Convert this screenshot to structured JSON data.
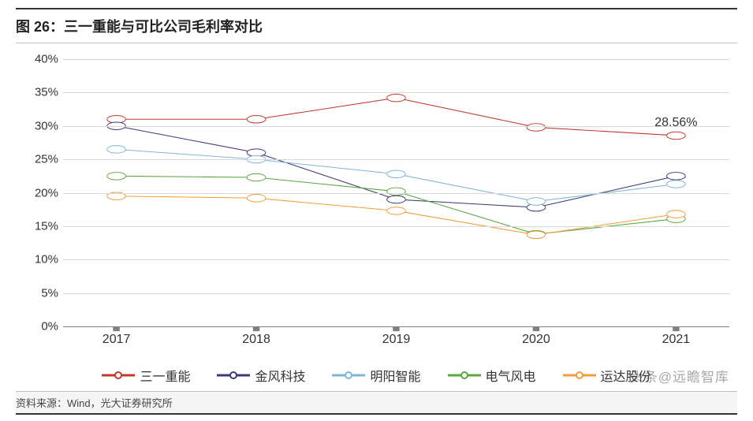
{
  "title": "图 26：三一重能与可比公司毛利率对比",
  "source": "资料来源：Wind，光大证券研究所",
  "watermark": "头条@远瞻智库",
  "annotation_label": "28.56%",
  "chart": {
    "type": "line",
    "ylabel_suffix": "%",
    "ylim": [
      0,
      40
    ],
    "ytick_step": 5,
    "categories": [
      "2017",
      "2018",
      "2019",
      "2020",
      "2021"
    ],
    "background_color": "#ffffff",
    "grid_color": "#d9d9d9",
    "axis_color": "#808080",
    "tick_fontsize": 15,
    "legend_fontsize": 16,
    "title_fontsize": 18,
    "line_width": 3,
    "marker_size": 11,
    "marker_fill": "#ffffff",
    "series": [
      {
        "name": "三一重能",
        "color": "#c0392b",
        "values": [
          31.0,
          31.0,
          34.2,
          29.8,
          28.56
        ]
      },
      {
        "name": "金风科技",
        "color": "#3b3a7a",
        "values": [
          30.0,
          26.0,
          19.0,
          17.8,
          22.5
        ]
      },
      {
        "name": "明阳智能",
        "color": "#7fb6d6",
        "values": [
          26.5,
          25.0,
          22.8,
          18.7,
          21.3
        ]
      },
      {
        "name": "电气风电",
        "color": "#5aa63f",
        "values": [
          22.5,
          22.3,
          20.2,
          13.8,
          16.1
        ]
      },
      {
        "name": "运达股份",
        "color": "#f39c3b",
        "values": [
          19.5,
          19.2,
          17.3,
          13.7,
          16.8
        ]
      }
    ]
  }
}
